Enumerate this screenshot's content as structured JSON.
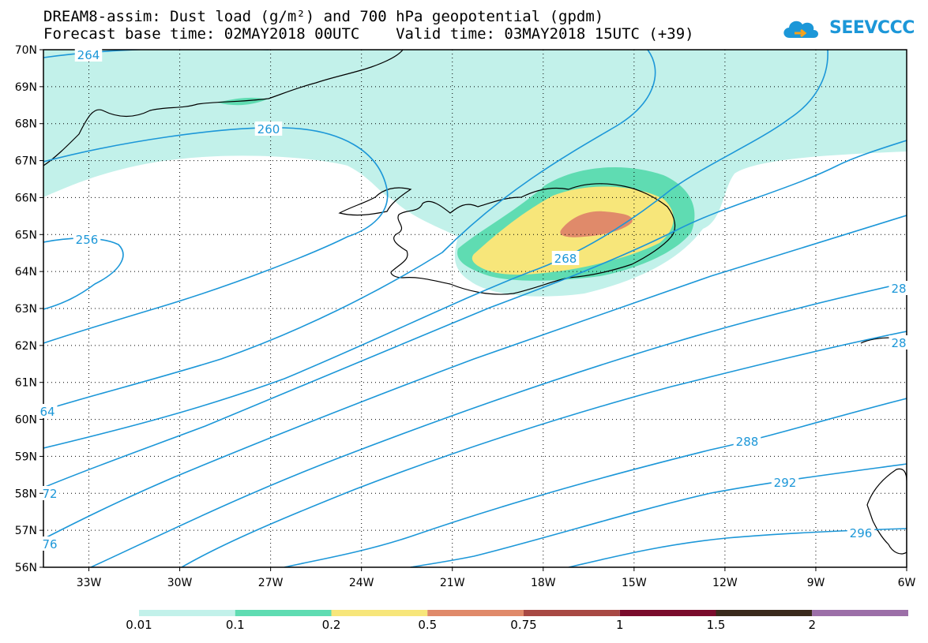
{
  "title_line1": "DREAM8-assim: Dust load (g/m²) and 700 hPa geopotential (gpdm)",
  "title_line2": "Forecast base time: 02MAY2018 00UTC    Valid time: 03MAY2018 15UTC (+39)",
  "logo_text": "SEEVCCC",
  "map": {
    "region": "North Atlantic / Iceland",
    "lon_range": [
      -34.5,
      -6
    ],
    "lat_range": [
      56,
      70
    ],
    "lon_ticks": [
      "33W",
      "30W",
      "27W",
      "24W",
      "21W",
      "18W",
      "15W",
      "12W",
      "9W",
      "6W"
    ],
    "lat_ticks": [
      "70N",
      "69N",
      "68N",
      "67N",
      "66N",
      "65N",
      "64N",
      "63N",
      "62N",
      "61N",
      "60N",
      "59N",
      "58N",
      "57N",
      "56N"
    ],
    "contour_labels": [
      {
        "text": "264"
      },
      {
        "text": "260"
      },
      {
        "text": "256"
      },
      {
        "text": "268"
      },
      {
        "text": "64"
      },
      {
        "text": "72"
      },
      {
        "text": "76"
      },
      {
        "text": "288"
      },
      {
        "text": "292"
      },
      {
        "text": "28"
      },
      {
        "text": "28"
      },
      {
        "text": "296"
      }
    ]
  },
  "legend": {
    "labels": [
      "0.01",
      "0.1",
      "0.2",
      "0.5",
      "0.75",
      "1",
      "1.5",
      "2"
    ],
    "colors": [
      "#c2f1ea",
      "#5fdcb2",
      "#f7e67a",
      "#e08a6a",
      "#a84944",
      "#7a0c2c",
      "#3a2a1c",
      "#9c6fa8"
    ]
  }
}
